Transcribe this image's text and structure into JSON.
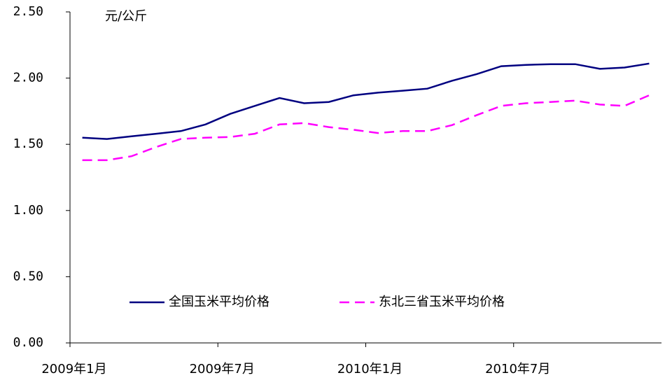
{
  "chart_data": {
    "type": "line",
    "annotations": [
      "元/公斤"
    ],
    "categories": [
      "2009年1月",
      null,
      null,
      null,
      null,
      null,
      "2009年7月",
      null,
      null,
      null,
      null,
      null,
      "2010年1月",
      null,
      null,
      null,
      null,
      null,
      "2010年7月",
      null,
      null,
      null,
      null,
      null
    ],
    "series": [
      {
        "name": "全国玉米平均价格",
        "color": "#000080",
        "dash": false,
        "values": [
          1.55,
          1.54,
          1.56,
          1.58,
          1.6,
          1.65,
          1.73,
          1.79,
          1.85,
          1.81,
          1.82,
          1.87,
          1.89,
          1.905,
          1.92,
          1.98,
          2.03,
          2.09,
          2.1,
          2.105,
          2.105,
          2.07,
          2.08,
          2.11
        ]
      },
      {
        "name": "东北三省玉米平均价格",
        "color": "#ff00ff",
        "dash": true,
        "values": [
          1.38,
          1.38,
          1.41,
          1.48,
          1.54,
          1.55,
          1.555,
          1.58,
          1.65,
          1.66,
          1.63,
          1.61,
          1.585,
          1.6,
          1.6,
          1.645,
          1.72,
          1.79,
          1.81,
          1.82,
          1.83,
          1.8,
          1.79,
          1.87
        ]
      }
    ],
    "ylim": [
      0,
      2.5
    ],
    "yticks": [
      {
        "value": 0,
        "label": "0.00"
      },
      {
        "value": 0.5,
        "label": "0.50"
      },
      {
        "value": 1,
        "label": "1.00"
      },
      {
        "value": 1.5,
        "label": "1.50"
      },
      {
        "value": 2,
        "label": "2.00"
      },
      {
        "value": 2.5,
        "label": "2.50"
      }
    ],
    "grid": false,
    "legend": "bottom"
  }
}
